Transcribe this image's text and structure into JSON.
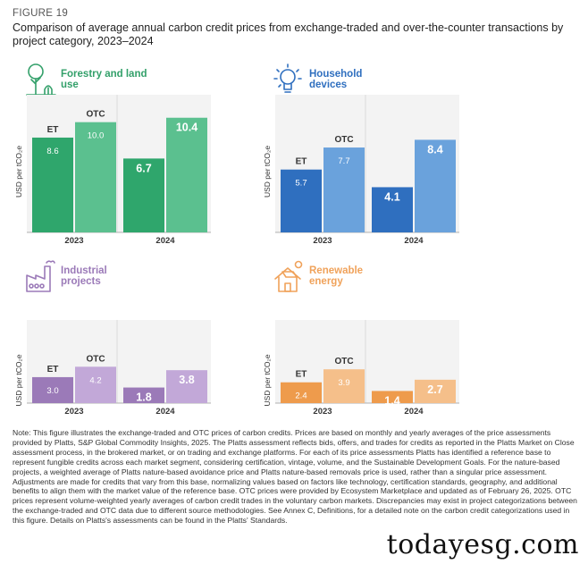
{
  "figure": {
    "label": "FIGURE 19",
    "title": "Comparison of average annual carbon credit prices from exchange-traded and over-the-counter transactions by project category, 2023–2024"
  },
  "chart_data": [
    {
      "type": "bar",
      "title": "Forestry and land use",
      "icon": "tree-icon",
      "ylabel": "USD per tCO₂e",
      "categories": [
        "2023",
        "2024"
      ],
      "series": [
        {
          "name": "ET",
          "values": [
            8.6,
            6.7
          ]
        },
        {
          "name": "OTC",
          "values": [
            10.0,
            10.4
          ]
        }
      ],
      "value_labels": [
        [
          "8.6",
          "6.7"
        ],
        [
          "10.0",
          "10.4"
        ]
      ],
      "colors": {
        "et": "#2fa66c",
        "otc": "#5bc08f",
        "title": "#33a06a"
      }
    },
    {
      "type": "bar",
      "title": "Household devices",
      "icon": "lightbulb-icon",
      "ylabel": "USD per tCO₂e",
      "categories": [
        "2023",
        "2024"
      ],
      "series": [
        {
          "name": "ET",
          "values": [
            5.7,
            4.1
          ]
        },
        {
          "name": "OTC",
          "values": [
            7.7,
            8.4
          ]
        }
      ],
      "value_labels": [
        [
          "5.7",
          "4.1"
        ],
        [
          "7.7",
          "8.4"
        ]
      ],
      "colors": {
        "et": "#2f6fbf",
        "otc": "#6aa2dc",
        "title": "#2f6fbf"
      }
    },
    {
      "type": "bar",
      "title": "Industrial projects",
      "icon": "factory-icon",
      "ylabel": "USD per tCO₂e",
      "categories": [
        "2023",
        "2024"
      ],
      "series": [
        {
          "name": "ET",
          "values": [
            3.0,
            1.8
          ]
        },
        {
          "name": "OTC",
          "values": [
            4.2,
            3.8
          ]
        }
      ],
      "value_labels": [
        [
          "3.0",
          "1.8"
        ],
        [
          "4.2",
          "3.8"
        ]
      ],
      "colors": {
        "et": "#9b7ab8",
        "otc": "#c2a8d8",
        "title": "#9b7ab8"
      }
    },
    {
      "type": "bar",
      "title": "Renewable energy",
      "icon": "solar-house-icon",
      "ylabel": "USD per tCO₂e",
      "categories": [
        "2023",
        "2024"
      ],
      "series": [
        {
          "name": "ET",
          "values": [
            2.4,
            1.4
          ]
        },
        {
          "name": "OTC",
          "values": [
            3.9,
            2.7
          ]
        }
      ],
      "value_labels": [
        [
          "2.4",
          "1.4"
        ],
        [
          "3.9",
          "2.7"
        ]
      ],
      "colors": {
        "et": "#ee9b4c",
        "otc": "#f5bf8a",
        "title": "#f0a25a"
      }
    }
  ],
  "note": "Note: This figure illustrates the exchange-traded and OTC prices of carbon credits. Prices are based on monthly and yearly averages of the price assessments provided by Platts, S&P Global Commodity Insights, 2025. The Platts assessment reflects bids, offers, and trades for credits as reported in the Platts Market on Close assessment process, in the brokered market, or on trading and exchange platforms. For each of its price assessments Platts has identified a reference base to represent fungible credits across each market segment, considering certification, vintage, volume, and the Sustainable Development Goals. For the nature-based projects, a weighted average of Platts nature-based avoidance price and Platts nature-based removals price is used, rather than a singular price assessment. Adjustments are made for credits that vary from this base, normalizing values based on factors like technology, certification standards, geography, and additional benefits to align them with the market value of the reference base. OTC prices were provided by Ecosystem Marketplace and updated as of February 26, 2025. OTC prices represent volume-weighted yearly averages of carbon credit trades in the voluntary carbon markets. Discrepancies may exist in project categorizations between the exchange-traded and OTC data due to different source methodologies. See Annex C, Definitions, for a detailed note on the carbon credit categorizations used in this figure. Details on Platts's assessments can be found in the Platts' Standards.",
  "watermark": "todayesg.com"
}
